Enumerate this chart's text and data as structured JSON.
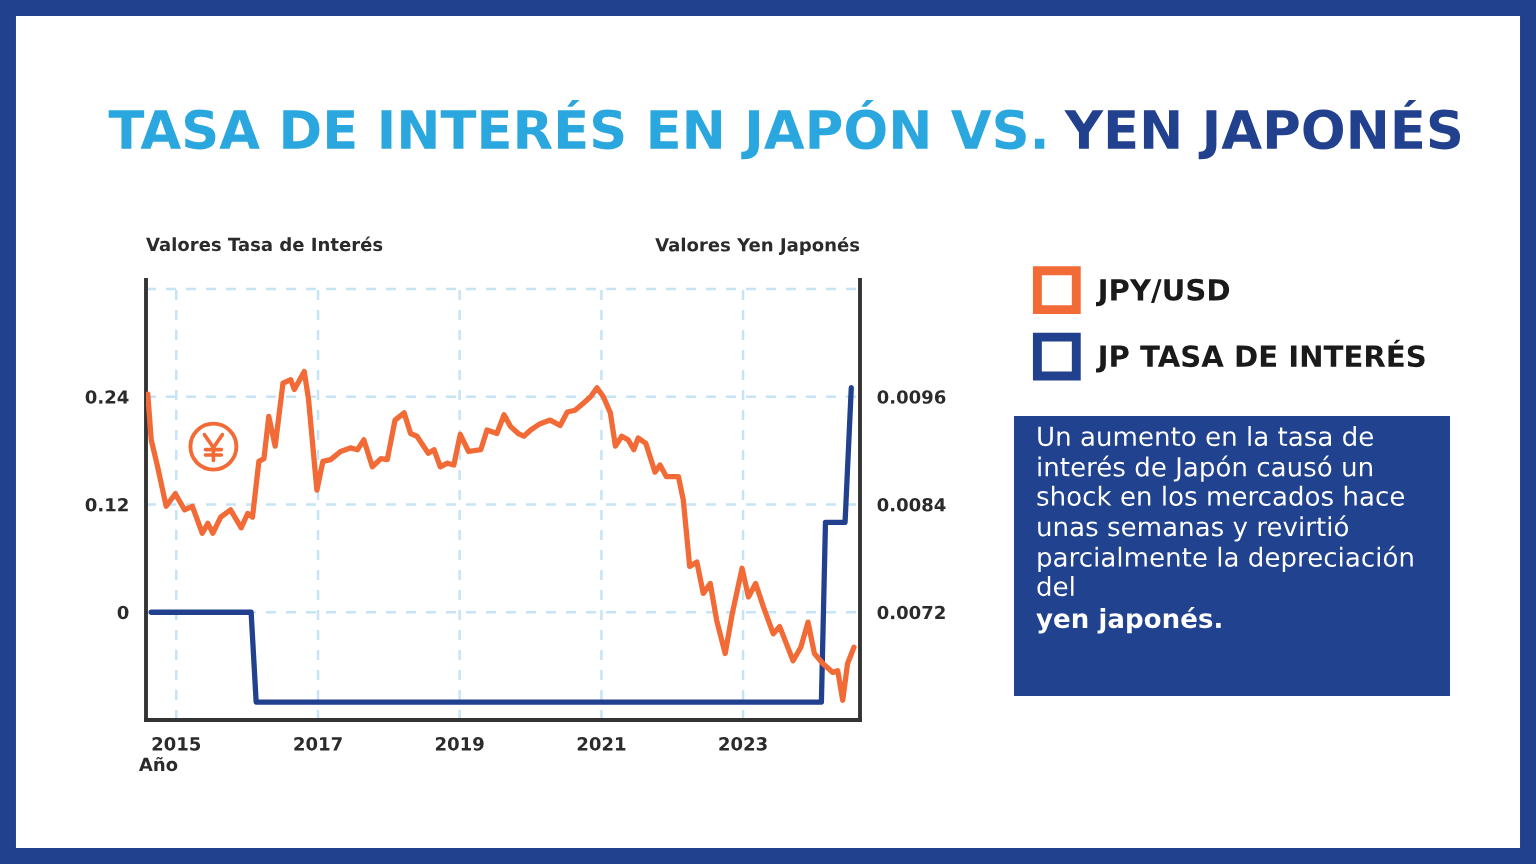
{
  "chart_data": {
    "type": "line",
    "title": "TASA DE INTERÉS EN JAPÓN VS. YEN JAPONÉS",
    "xlabel": "Año",
    "ylabel": "Valores Tasa de Interés",
    "y2label": "Valores Yen Japonés",
    "annotations": [
      "Un aumento en la tasa de interés de Japón causó un shock en los mercados hace unas semanas y revirtió parcialmente la depreciación del",
      "yen japonés."
    ],
    "xlim": [
      "2014-07-29",
      "2024-08-26"
    ],
    "xticks": [
      {
        "value": "2015-01-01",
        "label": "2015"
      },
      {
        "value": "2017-01-01",
        "label": "2017"
      },
      {
        "value": "2019-01-01",
        "label": "2019"
      },
      {
        "value": "2021-01-01",
        "label": "2021"
      },
      {
        "value": "2023-01-01",
        "label": "2023"
      }
    ],
    "ylim": [
      -0.12,
      0.37
    ],
    "yticks": [
      0,
      0.12,
      0.24,
      {
        "value": 0.36,
        "label": null
      }
    ],
    "y2lim": [
      0.006,
      0.0109
    ],
    "y2ticks": [
      0.0072,
      0.0084,
      0.0096
    ],
    "grid": true,
    "legend": "right",
    "series": [
      {
        "name": "JPY/USD",
        "color": "#f26a36",
        "axis": "y2",
        "x": [
          "2014-08-07",
          "2014-08-25",
          "2014-09-27",
          "2014-11-10",
          "2014-12-27",
          "2015-02-13",
          "2015-03-25",
          "2015-05-15",
          "2015-06-13",
          "2015-07-09",
          "2015-08-18",
          "2015-10-08",
          "2015-12-02",
          "2016-01-04",
          "2016-01-29",
          "2016-03-02",
          "2016-03-28",
          "2016-04-22",
          "2016-05-25",
          "2016-07-04",
          "2016-08-13",
          "2016-09-01",
          "2016-10-22",
          "2016-11-13",
          "2016-12-26",
          "2017-01-26",
          "2017-03-07",
          "2017-04-27",
          "2017-06-17",
          "2017-07-23",
          "2017-08-25",
          "2017-10-08",
          "2017-11-21",
          "2017-12-24",
          "2018-02-02",
          "2018-03-21",
          "2018-04-23",
          "2018-05-26",
          "2018-07-23",
          "2018-08-22",
          "2018-09-23",
          "2018-10-30",
          "2018-12-02",
          "2019-01-04",
          "2019-02-16",
          "2019-04-20",
          "2019-05-22",
          "2019-07-12",
          "2019-08-18",
          "2019-09-20",
          "2019-10-30",
          "2019-11-28",
          "2020-01-02",
          "2020-02-20",
          "2020-04-12",
          "2020-06-02",
          "2020-07-09",
          "2020-08-18",
          "2020-10-01",
          "2020-11-06",
          "2020-12-09",
          "2021-01-11",
          "2021-02-16",
          "2021-03-14",
          "2021-04-16",
          "2021-05-19",
          "2021-06-17",
          "2021-07-09",
          "2021-08-18",
          "2021-10-04",
          "2021-10-30",
          "2021-12-02",
          "2022-02-02",
          "2022-02-27",
          "2022-04-01",
          "2022-05-08",
          "2022-06-10",
          "2022-07-16",
          "2022-08-18",
          "2022-10-01",
          "2022-11-06",
          "2022-12-27",
          "2023-01-29",
          "2023-03-07",
          "2023-04-16",
          "2023-06-06",
          "2023-07-09",
          "2023-09-16",
          "2023-10-26",
          "2023-12-02",
          "2024-01-04",
          "2024-02-16",
          "2024-04-08",
          "2024-05-03",
          "2024-05-29",
          "2024-06-23",
          "2024-07-26"
        ],
        "values": [
          0.00963,
          0.00912,
          0.00882,
          0.00838,
          0.00852,
          0.00834,
          0.00838,
          0.00808,
          0.00819,
          0.00808,
          0.00826,
          0.00834,
          0.00814,
          0.0083,
          0.00826,
          0.00888,
          0.00891,
          0.00938,
          0.00905,
          0.00975,
          0.00979,
          0.00968,
          0.00988,
          0.00957,
          0.00856,
          0.00888,
          0.0089,
          0.00899,
          0.00903,
          0.00901,
          0.00912,
          0.00882,
          0.00891,
          0.0089,
          0.00934,
          0.00942,
          0.00919,
          0.00916,
          0.00897,
          0.00901,
          0.00882,
          0.00886,
          0.00884,
          0.00918,
          0.00899,
          0.00901,
          0.00923,
          0.00919,
          0.0094,
          0.00927,
          0.00919,
          0.00916,
          0.00923,
          0.0093,
          0.00934,
          0.00928,
          0.00943,
          0.00945,
          0.00953,
          0.0096,
          0.0097,
          0.0096,
          0.00942,
          0.00905,
          0.00916,
          0.00912,
          0.00901,
          0.00914,
          0.00908,
          0.00876,
          0.00884,
          0.00871,
          0.00871,
          0.00845,
          0.00771,
          0.00776,
          0.00741,
          0.00752,
          0.00711,
          0.00674,
          0.00718,
          0.00769,
          0.00737,
          0.00752,
          0.00726,
          0.00696,
          0.00704,
          0.00666,
          0.00681,
          0.00709,
          0.00674,
          0.00663,
          0.00653,
          0.00655,
          0.00622,
          0.00663,
          0.00681
        ]
      },
      {
        "name": "JP TASA DE INTERÉS",
        "color": "#21408e",
        "axis": "y",
        "x": [
          "2014-08-25",
          "2016-01-22",
          "2016-02-17",
          "2024-02-09",
          "2024-03-01",
          "2024-06-10",
          "2024-07-12"
        ],
        "values": [
          0,
          0,
          -0.1,
          -0.1,
          0.1,
          0.1,
          0.25
        ]
      }
    ]
  }
}
